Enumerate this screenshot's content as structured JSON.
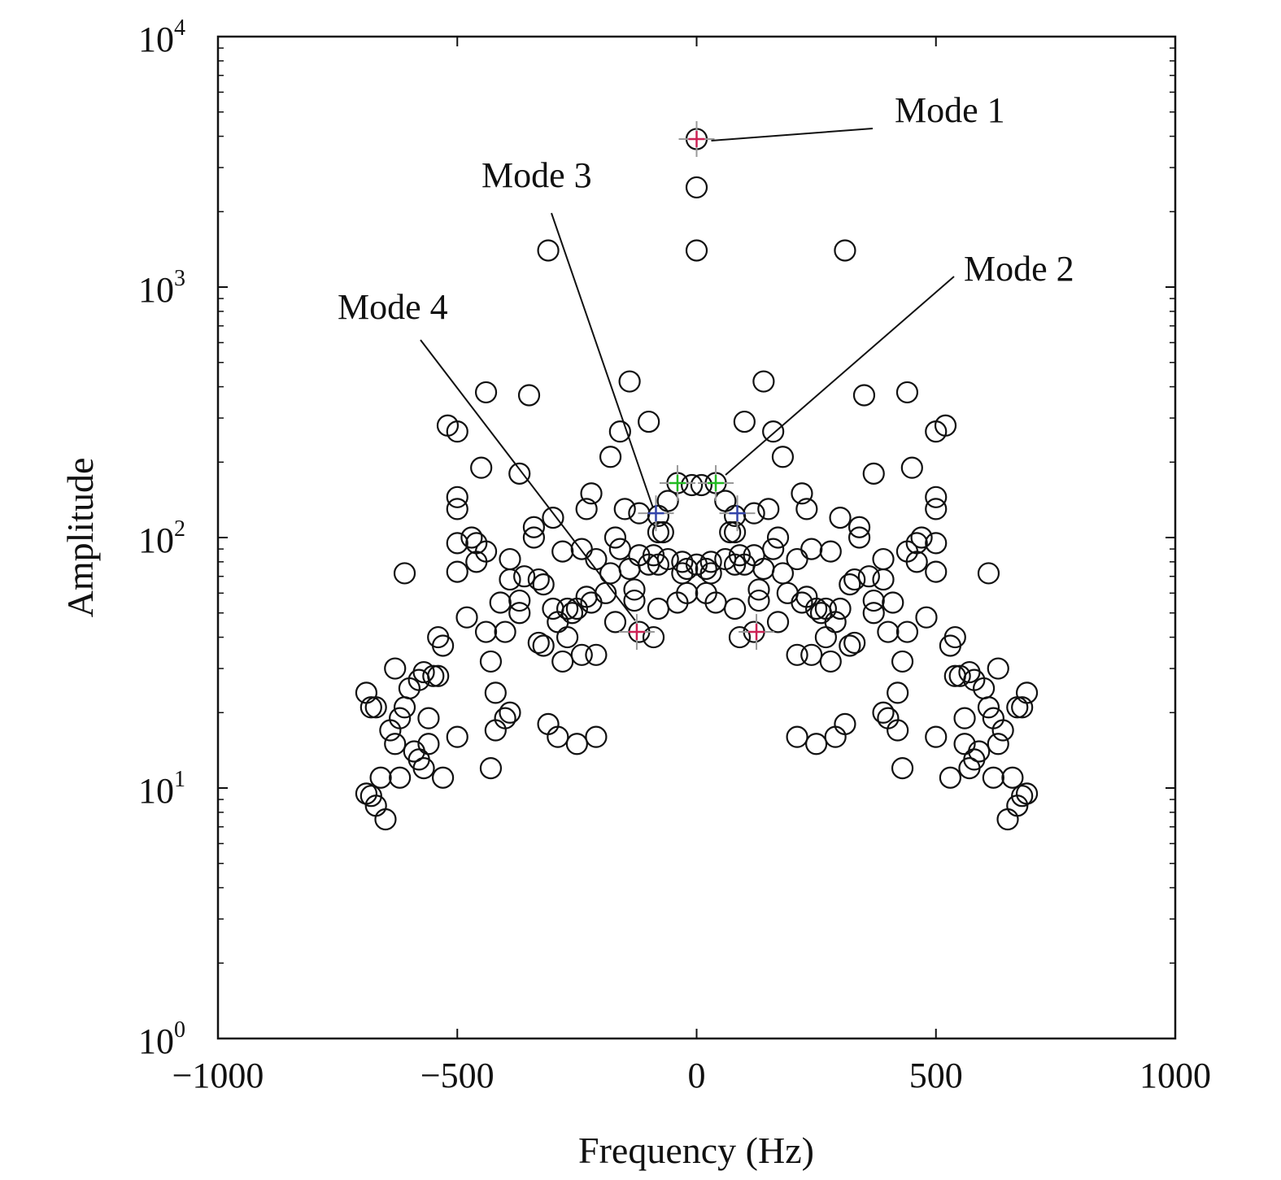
{
  "chart_data": {
    "type": "scatter",
    "xlabel": "Frequency (Hz)",
    "ylabel": "Amplitude",
    "xlim": [
      -1000,
      1000
    ],
    "ylim": [
      1,
      10000
    ],
    "yscale": "log",
    "grid": false,
    "xticks": [
      {
        "value": -1000,
        "label": "−1000"
      },
      {
        "value": -500,
        "label": "−500"
      },
      {
        "value": 0,
        "label": "0"
      },
      {
        "value": 500,
        "label": "500"
      },
      {
        "value": 1000,
        "label": "1000"
      }
    ],
    "yticks": [
      {
        "value": 1,
        "base": "10",
        "exp": "0"
      },
      {
        "value": 10,
        "base": "10",
        "exp": "1"
      },
      {
        "value": 100,
        "base": "10",
        "exp": "2"
      },
      {
        "value": 1000,
        "base": "10",
        "exp": "3"
      },
      {
        "value": 10000,
        "base": "10",
        "exp": "4"
      }
    ],
    "marker": {
      "shape": "circle-open",
      "color": "#111111"
    },
    "series": [
      {
        "points": [
          [
            0,
            3900
          ],
          [
            0,
            2500
          ],
          [
            0,
            1400
          ],
          [
            -310,
            1400
          ],
          [
            310,
            1400
          ],
          [
            -140,
            420
          ],
          [
            140,
            420
          ],
          [
            -440,
            380
          ],
          [
            440,
            380
          ],
          [
            -350,
            370
          ],
          [
            350,
            370
          ],
          [
            -100,
            290
          ],
          [
            100,
            290
          ],
          [
            -160,
            265
          ],
          [
            160,
            265
          ],
          [
            -520,
            280
          ],
          [
            520,
            280
          ],
          [
            -500,
            265
          ],
          [
            500,
            265
          ],
          [
            -180,
            210
          ],
          [
            180,
            210
          ],
          [
            -450,
            190
          ],
          [
            450,
            190
          ],
          [
            -370,
            180
          ],
          [
            370,
            180
          ],
          [
            -40,
            165
          ],
          [
            40,
            165
          ],
          [
            -10,
            162
          ],
          [
            10,
            162
          ],
          [
            -220,
            150
          ],
          [
            220,
            150
          ],
          [
            -500,
            145
          ],
          [
            500,
            145
          ],
          [
            -60,
            140
          ],
          [
            60,
            140
          ],
          [
            -500,
            130
          ],
          [
            500,
            130
          ],
          [
            -150,
            130
          ],
          [
            150,
            130
          ],
          [
            -230,
            130
          ],
          [
            230,
            130
          ],
          [
            -120,
            125
          ],
          [
            120,
            125
          ],
          [
            -300,
            120
          ],
          [
            300,
            120
          ],
          [
            -80,
            122
          ],
          [
            80,
            122
          ],
          [
            -340,
            110
          ],
          [
            340,
            110
          ],
          [
            -80,
            105
          ],
          [
            80,
            105
          ],
          [
            -70,
            105
          ],
          [
            70,
            105
          ],
          [
            -340,
            100
          ],
          [
            340,
            100
          ],
          [
            -470,
            100
          ],
          [
            470,
            100
          ],
          [
            -170,
            100
          ],
          [
            170,
            100
          ],
          [
            -460,
            95
          ],
          [
            460,
            95
          ],
          [
            -160,
            90
          ],
          [
            160,
            90
          ],
          [
            -500,
            95
          ],
          [
            500,
            95
          ],
          [
            -280,
            88
          ],
          [
            280,
            88
          ],
          [
            -240,
            90
          ],
          [
            240,
            90
          ],
          [
            -440,
            88
          ],
          [
            440,
            88
          ],
          [
            -120,
            85
          ],
          [
            120,
            85
          ],
          [
            -90,
            85
          ],
          [
            90,
            85
          ],
          [
            -60,
            82
          ],
          [
            60,
            82
          ],
          [
            -30,
            80
          ],
          [
            30,
            80
          ],
          [
            0,
            78
          ],
          [
            -20,
            75
          ],
          [
            20,
            75
          ],
          [
            -390,
            82
          ],
          [
            390,
            82
          ],
          [
            -460,
            80
          ],
          [
            460,
            80
          ],
          [
            -210,
            82
          ],
          [
            210,
            82
          ],
          [
            -100,
            78
          ],
          [
            100,
            78
          ],
          [
            -80,
            78
          ],
          [
            80,
            78
          ],
          [
            -500,
            73
          ],
          [
            500,
            73
          ],
          [
            -610,
            72
          ],
          [
            610,
            72
          ],
          [
            -140,
            75
          ],
          [
            140,
            75
          ],
          [
            -180,
            72
          ],
          [
            180,
            72
          ],
          [
            -330,
            68
          ],
          [
            330,
            68
          ],
          [
            -360,
            70
          ],
          [
            360,
            70
          ],
          [
            -390,
            68
          ],
          [
            390,
            68
          ],
          [
            -30,
            72
          ],
          [
            30,
            72
          ],
          [
            -320,
            65
          ],
          [
            320,
            65
          ],
          [
            -130,
            62
          ],
          [
            130,
            62
          ],
          [
            -190,
            60
          ],
          [
            190,
            60
          ],
          [
            -20,
            60
          ],
          [
            20,
            60
          ],
          [
            -230,
            58
          ],
          [
            230,
            58
          ],
          [
            -370,
            56
          ],
          [
            370,
            56
          ],
          [
            -410,
            55
          ],
          [
            410,
            55
          ],
          [
            -40,
            55
          ],
          [
            40,
            55
          ],
          [
            -130,
            56
          ],
          [
            130,
            56
          ],
          [
            -220,
            55
          ],
          [
            220,
            55
          ],
          [
            -300,
            52
          ],
          [
            300,
            52
          ],
          [
            -270,
            52
          ],
          [
            270,
            52
          ],
          [
            -250,
            52
          ],
          [
            250,
            52
          ],
          [
            -80,
            52
          ],
          [
            80,
            52
          ],
          [
            -260,
            50
          ],
          [
            260,
            50
          ],
          [
            -370,
            50
          ],
          [
            370,
            50
          ],
          [
            -480,
            48
          ],
          [
            480,
            48
          ],
          [
            -170,
            46
          ],
          [
            170,
            46
          ],
          [
            -290,
            46
          ],
          [
            290,
            46
          ],
          [
            -440,
            42
          ],
          [
            440,
            42
          ],
          [
            -400,
            42
          ],
          [
            400,
            42
          ],
          [
            -120,
            42
          ],
          [
            120,
            42
          ],
          [
            -90,
            40
          ],
          [
            90,
            40
          ],
          [
            -270,
            40
          ],
          [
            270,
            40
          ],
          [
            -540,
            40
          ],
          [
            540,
            40
          ],
          [
            -530,
            37
          ],
          [
            530,
            37
          ],
          [
            -320,
            37
          ],
          [
            320,
            37
          ],
          [
            -330,
            38
          ],
          [
            330,
            38
          ],
          [
            -210,
            34
          ],
          [
            210,
            34
          ],
          [
            -240,
            34
          ],
          [
            240,
            34
          ],
          [
            -280,
            32
          ],
          [
            280,
            32
          ],
          [
            -430,
            32
          ],
          [
            430,
            32
          ],
          [
            -630,
            30
          ],
          [
            630,
            30
          ],
          [
            -570,
            29
          ],
          [
            570,
            29
          ],
          [
            -550,
            28
          ],
          [
            550,
            28
          ],
          [
            -580,
            27
          ],
          [
            580,
            27
          ],
          [
            -540,
            28
          ],
          [
            540,
            28
          ],
          [
            -600,
            25
          ],
          [
            600,
            25
          ],
          [
            -420,
            24
          ],
          [
            420,
            24
          ],
          [
            -690,
            24
          ],
          [
            690,
            24
          ],
          [
            -680,
            21
          ],
          [
            680,
            21
          ],
          [
            -670,
            21
          ],
          [
            670,
            21
          ],
          [
            -610,
            21
          ],
          [
            610,
            21
          ],
          [
            -390,
            20
          ],
          [
            390,
            20
          ],
          [
            -620,
            19
          ],
          [
            620,
            19
          ],
          [
            -400,
            19
          ],
          [
            400,
            19
          ],
          [
            -560,
            19
          ],
          [
            560,
            19
          ],
          [
            -640,
            17
          ],
          [
            640,
            17
          ],
          [
            -420,
            17
          ],
          [
            420,
            17
          ],
          [
            -310,
            18
          ],
          [
            310,
            18
          ],
          [
            -290,
            16
          ],
          [
            290,
            16
          ],
          [
            -560,
            15
          ],
          [
            560,
            15
          ],
          [
            -500,
            16
          ],
          [
            500,
            16
          ],
          [
            -630,
            15
          ],
          [
            630,
            15
          ],
          [
            -590,
            14
          ],
          [
            590,
            14
          ],
          [
            -250,
            15
          ],
          [
            250,
            15
          ],
          [
            -210,
            16
          ],
          [
            210,
            16
          ],
          [
            -580,
            13
          ],
          [
            580,
            13
          ],
          [
            -570,
            12
          ],
          [
            570,
            12
          ],
          [
            -430,
            12
          ],
          [
            430,
            12
          ],
          [
            -660,
            11
          ],
          [
            660,
            11
          ],
          [
            -620,
            11
          ],
          [
            620,
            11
          ],
          [
            -530,
            11
          ],
          [
            530,
            11
          ],
          [
            -690,
            9.5
          ],
          [
            690,
            9.5
          ],
          [
            -680,
            9.3
          ],
          [
            680,
            9.3
          ],
          [
            -670,
            8.5
          ],
          [
            670,
            8.5
          ],
          [
            -650,
            7.5
          ],
          [
            650,
            7.5
          ]
        ]
      }
    ],
    "highlighted_modes": [
      {
        "label": "Mode 1",
        "color": "#cc2255",
        "points": [
          [
            0,
            3900
          ]
        ]
      },
      {
        "label": "Mode 2",
        "color": "#22bb22",
        "points": [
          [
            -40,
            165
          ],
          [
            40,
            165
          ]
        ]
      },
      {
        "label": "Mode 3",
        "color": "#3344aa",
        "points": [
          [
            -85,
            125
          ],
          [
            85,
            125
          ]
        ]
      },
      {
        "label": "Mode 4",
        "color": "#cc2255",
        "points": [
          [
            -125,
            42
          ],
          [
            125,
            42
          ]
        ]
      }
    ]
  }
}
